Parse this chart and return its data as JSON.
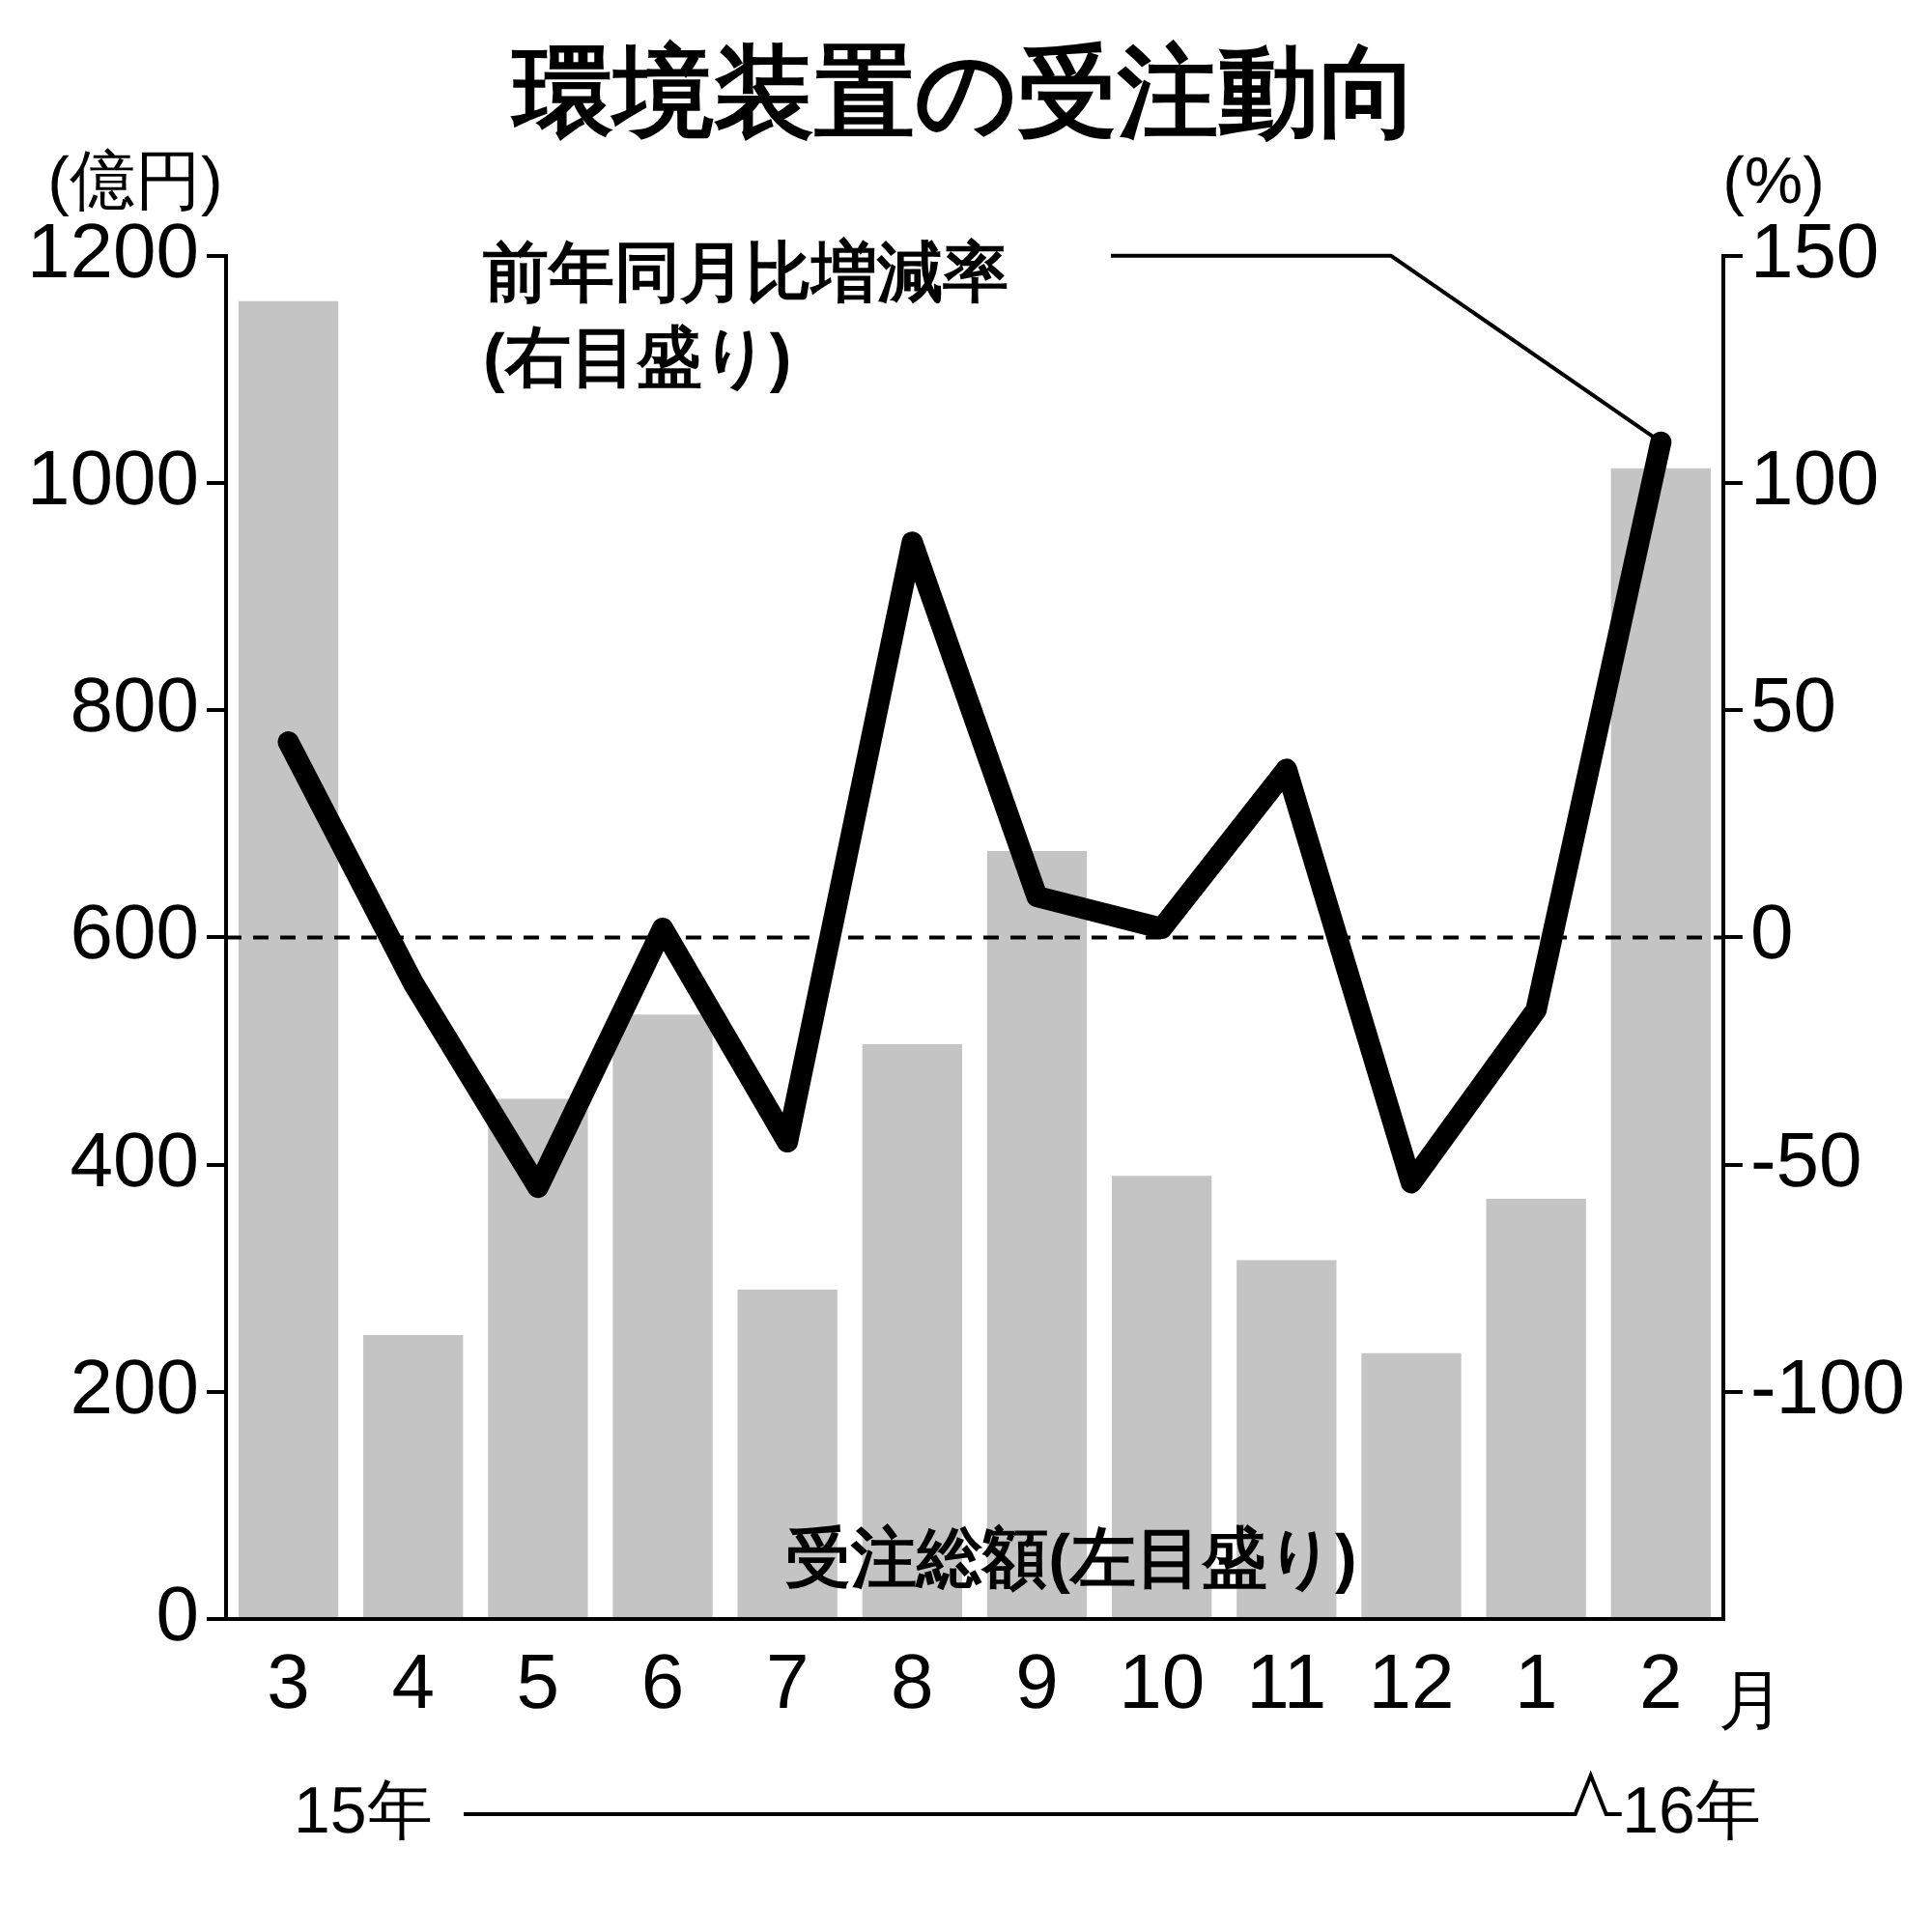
{
  "chart_data": {
    "type": "bar",
    "title": "環境装置の受注動向",
    "ylabel": "(億円)",
    "y2label": "(%)",
    "categories": [
      "3",
      "4",
      "5",
      "6",
      "7",
      "8",
      "9",
      "10",
      "11",
      "12",
      "1",
      "2"
    ],
    "series": [
      {
        "color": "#c4c4c4",
        "values": [
          1160,
          250,
          458,
          532,
          290,
          506,
          676,
          390,
          316,
          234,
          370,
          1013
        ]
      },
      {
        "type": "line",
        "axis": "y2",
        "color": "#000000",
        "values": [
          43,
          -10,
          -55,
          2,
          -45,
          87,
          9,
          2,
          37,
          -54,
          -16,
          109
        ]
      }
    ],
    "ylim": [
      0,
      1200
    ],
    "yticks": [
      0,
      200,
      400,
      600,
      800,
      1000,
      1200
    ],
    "y2lim": [
      -150,
      150
    ],
    "y2ticks": [
      -100,
      -50,
      0,
      50,
      100,
      150
    ],
    "ref_lines": [
      {
        "axis": "y2",
        "value": 0,
        "line_style": "dashed",
        "color": "#000000"
      }
    ],
    "annotations": [
      "前年同月比増減率\n(右目盛り)",
      "受注総額(左目盛り)",
      "月",
      "15年",
      "16年"
    ],
    "grid": false,
    "legend": false,
    "marker": "none",
    "line_style": "solid"
  }
}
